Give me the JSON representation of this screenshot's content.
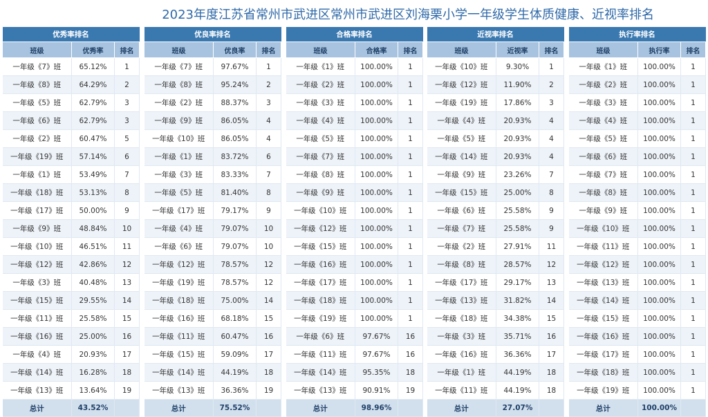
{
  "title": "2023年度江苏省常州市武进区常州市武进区刘海栗小学一年级学生体质健康、近视率排名",
  "panels": [
    {
      "name": "excellent",
      "title": "优秀率排名",
      "headers": [
        "班级",
        "优秀率",
        "排名"
      ],
      "rows": [
        [
          "一年级《7》班",
          "65.12%",
          "1"
        ],
        [
          "一年级《8》班",
          "64.29%",
          "2"
        ],
        [
          "一年级《5》班",
          "62.79%",
          "3"
        ],
        [
          "一年级《6》班",
          "62.79%",
          "3"
        ],
        [
          "一年级《2》班",
          "60.47%",
          "5"
        ],
        [
          "一年级《19》班",
          "57.14%",
          "6"
        ],
        [
          "一年级《1》班",
          "53.49%",
          "7"
        ],
        [
          "一年级《18》班",
          "53.13%",
          "8"
        ],
        [
          "一年级《17》班",
          "50.00%",
          "9"
        ],
        [
          "一年级《9》班",
          "48.84%",
          "10"
        ],
        [
          "一年级《10》班",
          "46.51%",
          "11"
        ],
        [
          "一年级《12》班",
          "42.86%",
          "12"
        ],
        [
          "一年级《3》班",
          "40.48%",
          "13"
        ],
        [
          "一年级《15》班",
          "29.55%",
          "14"
        ],
        [
          "一年级《11》班",
          "25.58%",
          "15"
        ],
        [
          "一年级《16》班",
          "25.00%",
          "16"
        ],
        [
          "一年级《4》班",
          "20.93%",
          "17"
        ],
        [
          "一年级《14》班",
          "16.28%",
          "18"
        ],
        [
          "一年级《13》班",
          "13.64%",
          "19"
        ]
      ],
      "total": [
        "总计",
        "43.52%",
        ""
      ]
    },
    {
      "name": "good",
      "title": "优良率排名",
      "headers": [
        "班级",
        "优良率",
        "排名"
      ],
      "rows": [
        [
          "一年级《7》班",
          "97.67%",
          "1"
        ],
        [
          "一年级《8》班",
          "95.24%",
          "2"
        ],
        [
          "一年级《2》班",
          "88.37%",
          "3"
        ],
        [
          "一年级《9》班",
          "86.05%",
          "4"
        ],
        [
          "一年级《10》班",
          "86.05%",
          "4"
        ],
        [
          "一年级《1》班",
          "83.72%",
          "6"
        ],
        [
          "一年级《3》班",
          "83.33%",
          "7"
        ],
        [
          "一年级《5》班",
          "81.40%",
          "8"
        ],
        [
          "一年级《17》班",
          "79.17%",
          "9"
        ],
        [
          "一年级《4》班",
          "79.07%",
          "10"
        ],
        [
          "一年级《6》班",
          "79.07%",
          "10"
        ],
        [
          "一年级《12》班",
          "78.57%",
          "12"
        ],
        [
          "一年级《19》班",
          "78.57%",
          "12"
        ],
        [
          "一年级《18》班",
          "75.00%",
          "14"
        ],
        [
          "一年级《16》班",
          "68.18%",
          "15"
        ],
        [
          "一年级《11》班",
          "60.47%",
          "16"
        ],
        [
          "一年级《15》班",
          "59.09%",
          "17"
        ],
        [
          "一年级《14》班",
          "44.19%",
          "18"
        ],
        [
          "一年级《13》班",
          "36.36%",
          "19"
        ]
      ],
      "total": [
        "总计",
        "75.52%",
        ""
      ]
    },
    {
      "name": "pass",
      "title": "合格率排名",
      "headers": [
        "班级",
        "合格率",
        "排名"
      ],
      "rows": [
        [
          "一年级《1》班",
          "100.00%",
          "1"
        ],
        [
          "一年级《2》班",
          "100.00%",
          "1"
        ],
        [
          "一年级《3》班",
          "100.00%",
          "1"
        ],
        [
          "一年级《4》班",
          "100.00%",
          "1"
        ],
        [
          "一年级《5》班",
          "100.00%",
          "1"
        ],
        [
          "一年级《7》班",
          "100.00%",
          "1"
        ],
        [
          "一年级《8》班",
          "100.00%",
          "1"
        ],
        [
          "一年级《9》班",
          "100.00%",
          "1"
        ],
        [
          "一年级《10》班",
          "100.00%",
          "1"
        ],
        [
          "一年级《12》班",
          "100.00%",
          "1"
        ],
        [
          "一年级《15》班",
          "100.00%",
          "1"
        ],
        [
          "一年级《16》班",
          "100.00%",
          "1"
        ],
        [
          "一年级《17》班",
          "100.00%",
          "1"
        ],
        [
          "一年级《18》班",
          "100.00%",
          "1"
        ],
        [
          "一年级《19》班",
          "100.00%",
          "1"
        ],
        [
          "一年级《6》班",
          "97.67%",
          "16"
        ],
        [
          "一年级《11》班",
          "97.67%",
          "16"
        ],
        [
          "一年级《14》班",
          "95.35%",
          "18"
        ],
        [
          "一年级《13》班",
          "90.91%",
          "19"
        ]
      ],
      "total": [
        "总计",
        "98.96%",
        ""
      ]
    },
    {
      "name": "myopia",
      "title": "近视率排名",
      "headers": [
        "班级",
        "近视率",
        "排名"
      ],
      "rows": [
        [
          "一年级《10》班",
          "9.30%",
          "1"
        ],
        [
          "一年级《12》班",
          "11.90%",
          "2"
        ],
        [
          "一年级《19》班",
          "17.86%",
          "3"
        ],
        [
          "一年级《4》班",
          "20.93%",
          "4"
        ],
        [
          "一年级《5》班",
          "20.93%",
          "4"
        ],
        [
          "一年级《14》班",
          "20.93%",
          "4"
        ],
        [
          "一年级《9》班",
          "23.26%",
          "7"
        ],
        [
          "一年级《15》班",
          "25.00%",
          "8"
        ],
        [
          "一年级《6》班",
          "25.58%",
          "9"
        ],
        [
          "一年级《7》班",
          "25.58%",
          "9"
        ],
        [
          "一年级《2》班",
          "27.91%",
          "11"
        ],
        [
          "一年级《8》班",
          "28.57%",
          "12"
        ],
        [
          "一年级《17》班",
          "29.17%",
          "13"
        ],
        [
          "一年级《13》班",
          "31.82%",
          "14"
        ],
        [
          "一年级《18》班",
          "34.38%",
          "15"
        ],
        [
          "一年级《3》班",
          "35.71%",
          "16"
        ],
        [
          "一年级《16》班",
          "36.36%",
          "17"
        ],
        [
          "一年级《1》班",
          "44.19%",
          "18"
        ],
        [
          "一年级《11》班",
          "44.19%",
          "18"
        ]
      ],
      "total": [
        "总计",
        "27.07%",
        ""
      ]
    },
    {
      "name": "execution",
      "title": "执行率排名",
      "headers": [
        "班级",
        "执行率",
        "排名"
      ],
      "rows": [
        [
          "一年级《1》班",
          "100.00%",
          "1"
        ],
        [
          "一年级《2》班",
          "100.00%",
          "1"
        ],
        [
          "一年级《3》班",
          "100.00%",
          "1"
        ],
        [
          "一年级《4》班",
          "100.00%",
          "1"
        ],
        [
          "一年级《5》班",
          "100.00%",
          "1"
        ],
        [
          "一年级《6》班",
          "100.00%",
          "1"
        ],
        [
          "一年级《7》班",
          "100.00%",
          "1"
        ],
        [
          "一年级《8》班",
          "100.00%",
          "1"
        ],
        [
          "一年级《9》班",
          "100.00%",
          "1"
        ],
        [
          "一年级《10》班",
          "100.00%",
          "1"
        ],
        [
          "一年级《11》班",
          "100.00%",
          "1"
        ],
        [
          "一年级《12》班",
          "100.00%",
          "1"
        ],
        [
          "一年级《13》班",
          "100.00%",
          "1"
        ],
        [
          "一年级《14》班",
          "100.00%",
          "1"
        ],
        [
          "一年级《15》班",
          "100.00%",
          "1"
        ],
        [
          "一年级《16》班",
          "100.00%",
          "1"
        ],
        [
          "一年级《17》班",
          "100.00%",
          "1"
        ],
        [
          "一年级《18》班",
          "100.00%",
          "1"
        ],
        [
          "一年级《19》班",
          "100.00%",
          "1"
        ]
      ],
      "total": [
        "总计",
        "100.00%",
        ""
      ]
    }
  ]
}
